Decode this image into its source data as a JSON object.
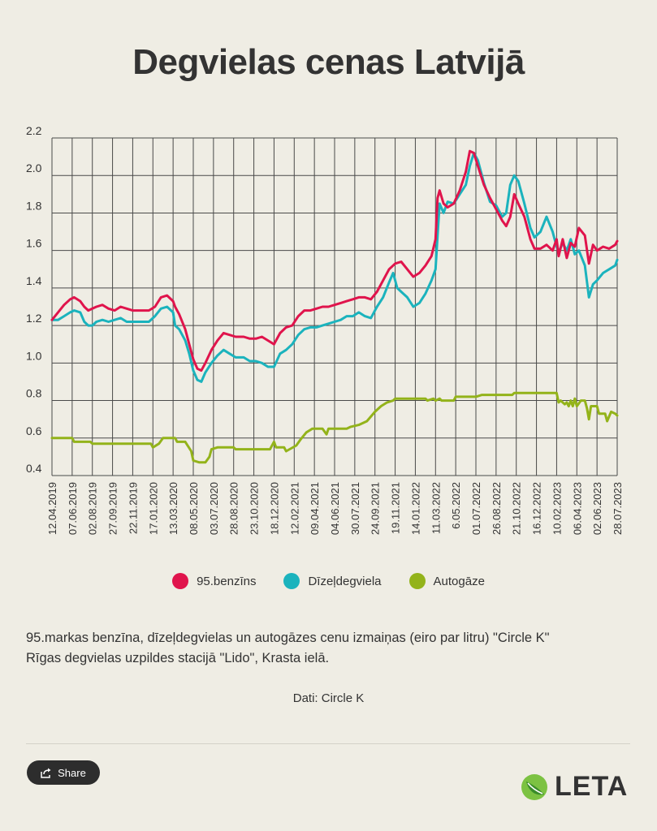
{
  "page": {
    "title": "Degvielas cenas Latvijā",
    "caption_line1": "95.markas benzīna, dīzeļdegvielas un autogāzes cenu izmaiņas (eiro par litru) \"Circle K\"",
    "caption_line2": "Rīgas degvielas uzpildes stacijā \"Lido\", Krasta ielā.",
    "source": "Dati: Circle K",
    "share_label": "Share",
    "logo_text": "LETA"
  },
  "colors": {
    "benzins": "#e0144c",
    "dizel": "#1bb3bd",
    "gaze": "#93b31a",
    "grid": "#4a4a4a",
    "background": "#efede4"
  },
  "chart_data": {
    "type": "line",
    "title": "Degvielas cenas Latvijā",
    "ylabel": "eiro par litru",
    "ylim": [
      0.4,
      2.2
    ],
    "yticks": [
      0.4,
      0.6,
      0.8,
      1.0,
      1.2,
      1.4,
      1.6,
      1.8,
      2.0,
      2.2
    ],
    "ytick_labels": [
      "0.4",
      "0.6",
      "0.8",
      "1.0",
      "1.2",
      "1.4",
      "1.6",
      "1.8",
      "2.0",
      "2.2"
    ],
    "x_tick_labels": [
      "12.04.2019",
      "07.06.2019",
      "02.08.2019",
      "27.09.2019",
      "22.11.2019",
      "17.01.2020",
      "13.03.2020",
      "08.05.2020",
      "03.07.2020",
      "28.08.2020",
      "23.10.2020",
      "18.12.2020",
      "12.02.2021",
      "09.04.2021",
      "04.06.2021",
      "30.07.2021",
      "24.09.2021",
      "19.11.2021",
      "14.01.2022",
      "11.03.2022",
      "6.05.2022",
      "01.07.2022",
      "26.08.2022",
      "21.10.2022",
      "16.12.2022",
      "10.02.2023",
      "06.04.2023",
      "02.06.2023",
      "28.07.2023"
    ],
    "grid": true,
    "legend_position": "bottom",
    "series": [
      {
        "name": "95.benzīns",
        "color": "#e0144c",
        "points": [
          [
            0,
            1.23
          ],
          [
            0.3,
            1.27
          ],
          [
            0.6,
            1.31
          ],
          [
            0.9,
            1.34
          ],
          [
            1.1,
            1.35
          ],
          [
            1.4,
            1.33
          ],
          [
            1.6,
            1.3
          ],
          [
            1.8,
            1.28
          ],
          [
            2.0,
            1.29
          ],
          [
            2.2,
            1.3
          ],
          [
            2.5,
            1.31
          ],
          [
            2.8,
            1.29
          ],
          [
            3.1,
            1.28
          ],
          [
            3.4,
            1.3
          ],
          [
            3.7,
            1.29
          ],
          [
            4.0,
            1.28
          ],
          [
            4.4,
            1.28
          ],
          [
            4.8,
            1.28
          ],
          [
            5.1,
            1.3
          ],
          [
            5.4,
            1.35
          ],
          [
            5.7,
            1.36
          ],
          [
            6.0,
            1.33
          ],
          [
            6.1,
            1.3
          ],
          [
            6.3,
            1.26
          ],
          [
            6.6,
            1.18
          ],
          [
            6.8,
            1.1
          ],
          [
            7.0,
            1.02
          ],
          [
            7.2,
            0.97
          ],
          [
            7.4,
            0.96
          ],
          [
            7.6,
            1.0
          ],
          [
            7.9,
            1.07
          ],
          [
            8.2,
            1.12
          ],
          [
            8.5,
            1.16
          ],
          [
            8.8,
            1.15
          ],
          [
            9.1,
            1.14
          ],
          [
            9.5,
            1.14
          ],
          [
            9.8,
            1.13
          ],
          [
            10.1,
            1.13
          ],
          [
            10.4,
            1.14
          ],
          [
            10.7,
            1.12
          ],
          [
            11.0,
            1.1
          ],
          [
            11.3,
            1.16
          ],
          [
            11.6,
            1.19
          ],
          [
            11.9,
            1.2
          ],
          [
            12.2,
            1.25
          ],
          [
            12.5,
            1.28
          ],
          [
            12.8,
            1.28
          ],
          [
            13.1,
            1.29
          ],
          [
            13.4,
            1.3
          ],
          [
            13.7,
            1.3
          ],
          [
            14.0,
            1.31
          ],
          [
            14.3,
            1.32
          ],
          [
            14.6,
            1.33
          ],
          [
            14.9,
            1.34
          ],
          [
            15.2,
            1.35
          ],
          [
            15.5,
            1.35
          ],
          [
            15.8,
            1.34
          ],
          [
            16.1,
            1.38
          ],
          [
            16.4,
            1.44
          ],
          [
            16.7,
            1.5
          ],
          [
            17.0,
            1.53
          ],
          [
            17.3,
            1.54
          ],
          [
            17.6,
            1.5
          ],
          [
            17.9,
            1.46
          ],
          [
            18.2,
            1.48
          ],
          [
            18.5,
            1.52
          ],
          [
            18.8,
            1.57
          ],
          [
            19.0,
            1.66
          ],
          [
            19.1,
            1.88
          ],
          [
            19.2,
            1.92
          ],
          [
            19.4,
            1.85
          ],
          [
            19.6,
            1.83
          ],
          [
            19.9,
            1.85
          ],
          [
            20.2,
            1.92
          ],
          [
            20.5,
            2.02
          ],
          [
            20.7,
            2.13
          ],
          [
            20.9,
            2.12
          ],
          [
            21.1,
            2.05
          ],
          [
            21.4,
            1.95
          ],
          [
            21.7,
            1.88
          ],
          [
            22.0,
            1.82
          ],
          [
            22.3,
            1.76
          ],
          [
            22.5,
            1.73
          ],
          [
            22.7,
            1.78
          ],
          [
            22.9,
            1.9
          ],
          [
            23.1,
            1.85
          ],
          [
            23.4,
            1.78
          ],
          [
            23.7,
            1.66
          ],
          [
            23.9,
            1.61
          ],
          [
            24.2,
            1.61
          ],
          [
            24.5,
            1.63
          ],
          [
            24.8,
            1.6
          ],
          [
            25.0,
            1.66
          ],
          [
            25.1,
            1.57
          ],
          [
            25.3,
            1.66
          ],
          [
            25.5,
            1.56
          ],
          [
            25.7,
            1.64
          ],
          [
            25.9,
            1.62
          ],
          [
            26.1,
            1.72
          ],
          [
            26.4,
            1.68
          ],
          [
            26.6,
            1.53
          ],
          [
            26.8,
            1.63
          ],
          [
            27.0,
            1.6
          ],
          [
            27.3,
            1.62
          ],
          [
            27.6,
            1.61
          ],
          [
            27.9,
            1.63
          ],
          [
            28.0,
            1.65
          ]
        ]
      },
      {
        "name": "Dīzeļdegviela",
        "color": "#1bb3bd",
        "points": [
          [
            0,
            1.23
          ],
          [
            0.3,
            1.23
          ],
          [
            0.6,
            1.25
          ],
          [
            0.9,
            1.27
          ],
          [
            1.1,
            1.28
          ],
          [
            1.4,
            1.27
          ],
          [
            1.6,
            1.22
          ],
          [
            1.8,
            1.2
          ],
          [
            2.0,
            1.2
          ],
          [
            2.2,
            1.22
          ],
          [
            2.5,
            1.23
          ],
          [
            2.8,
            1.22
          ],
          [
            3.1,
            1.23
          ],
          [
            3.4,
            1.24
          ],
          [
            3.7,
            1.22
          ],
          [
            4.0,
            1.22
          ],
          [
            4.4,
            1.22
          ],
          [
            4.8,
            1.22
          ],
          [
            5.1,
            1.25
          ],
          [
            5.4,
            1.29
          ],
          [
            5.7,
            1.3
          ],
          [
            6.0,
            1.27
          ],
          [
            6.1,
            1.2
          ],
          [
            6.3,
            1.18
          ],
          [
            6.6,
            1.12
          ],
          [
            6.8,
            1.05
          ],
          [
            7.0,
            0.96
          ],
          [
            7.2,
            0.91
          ],
          [
            7.4,
            0.9
          ],
          [
            7.6,
            0.95
          ],
          [
            7.9,
            1.0
          ],
          [
            8.2,
            1.04
          ],
          [
            8.5,
            1.07
          ],
          [
            8.8,
            1.05
          ],
          [
            9.1,
            1.03
          ],
          [
            9.5,
            1.03
          ],
          [
            9.8,
            1.01
          ],
          [
            10.1,
            1.01
          ],
          [
            10.4,
            1.0
          ],
          [
            10.7,
            0.98
          ],
          [
            11.0,
            0.98
          ],
          [
            11.3,
            1.05
          ],
          [
            11.6,
            1.07
          ],
          [
            11.9,
            1.1
          ],
          [
            12.2,
            1.15
          ],
          [
            12.5,
            1.18
          ],
          [
            12.8,
            1.19
          ],
          [
            13.1,
            1.19
          ],
          [
            13.4,
            1.2
          ],
          [
            13.7,
            1.21
          ],
          [
            14.0,
            1.22
          ],
          [
            14.3,
            1.23
          ],
          [
            14.6,
            1.25
          ],
          [
            14.9,
            1.25
          ],
          [
            15.2,
            1.27
          ],
          [
            15.5,
            1.25
          ],
          [
            15.8,
            1.24
          ],
          [
            16.1,
            1.3
          ],
          [
            16.4,
            1.35
          ],
          [
            16.7,
            1.43
          ],
          [
            16.9,
            1.48
          ],
          [
            17.1,
            1.4
          ],
          [
            17.3,
            1.38
          ],
          [
            17.6,
            1.35
          ],
          [
            17.9,
            1.3
          ],
          [
            18.2,
            1.32
          ],
          [
            18.5,
            1.37
          ],
          [
            18.8,
            1.44
          ],
          [
            19.0,
            1.5
          ],
          [
            19.1,
            1.68
          ],
          [
            19.2,
            1.85
          ],
          [
            19.4,
            1.8
          ],
          [
            19.6,
            1.86
          ],
          [
            19.9,
            1.85
          ],
          [
            20.2,
            1.9
          ],
          [
            20.5,
            1.95
          ],
          [
            20.7,
            2.05
          ],
          [
            20.9,
            2.12
          ],
          [
            21.1,
            2.08
          ],
          [
            21.4,
            1.96
          ],
          [
            21.7,
            1.86
          ],
          [
            22.0,
            1.84
          ],
          [
            22.3,
            1.78
          ],
          [
            22.5,
            1.8
          ],
          [
            22.7,
            1.95
          ],
          [
            22.9,
            2.0
          ],
          [
            23.1,
            1.97
          ],
          [
            23.4,
            1.85
          ],
          [
            23.7,
            1.72
          ],
          [
            23.9,
            1.67
          ],
          [
            24.2,
            1.7
          ],
          [
            24.5,
            1.78
          ],
          [
            24.8,
            1.7
          ],
          [
            25.0,
            1.62
          ],
          [
            25.1,
            1.59
          ],
          [
            25.3,
            1.64
          ],
          [
            25.5,
            1.6
          ],
          [
            25.7,
            1.66
          ],
          [
            25.9,
            1.58
          ],
          [
            26.1,
            1.6
          ],
          [
            26.4,
            1.52
          ],
          [
            26.6,
            1.35
          ],
          [
            26.8,
            1.42
          ],
          [
            27.0,
            1.44
          ],
          [
            27.3,
            1.48
          ],
          [
            27.6,
            1.5
          ],
          [
            27.9,
            1.52
          ],
          [
            28.0,
            1.55
          ]
        ]
      },
      {
        "name": "Autogāze",
        "color": "#93b31a",
        "points": [
          [
            0,
            0.6
          ],
          [
            1.0,
            0.6
          ],
          [
            1.1,
            0.58
          ],
          [
            1.9,
            0.58
          ],
          [
            2.0,
            0.57
          ],
          [
            4.9,
            0.57
          ],
          [
            5.0,
            0.55
          ],
          [
            5.3,
            0.57
          ],
          [
            5.5,
            0.6
          ],
          [
            6.1,
            0.6
          ],
          [
            6.2,
            0.58
          ],
          [
            6.6,
            0.58
          ],
          [
            6.9,
            0.53
          ],
          [
            7.0,
            0.48
          ],
          [
            7.3,
            0.47
          ],
          [
            7.6,
            0.47
          ],
          [
            7.8,
            0.5
          ],
          [
            7.9,
            0.54
          ],
          [
            8.2,
            0.55
          ],
          [
            9.0,
            0.55
          ],
          [
            9.1,
            0.54
          ],
          [
            10.8,
            0.54
          ],
          [
            11.0,
            0.58
          ],
          [
            11.1,
            0.55
          ],
          [
            11.5,
            0.55
          ],
          [
            11.6,
            0.53
          ],
          [
            12.1,
            0.56
          ],
          [
            12.3,
            0.59
          ],
          [
            12.6,
            0.63
          ],
          [
            12.9,
            0.65
          ],
          [
            13.4,
            0.65
          ],
          [
            13.6,
            0.62
          ],
          [
            13.7,
            0.65
          ],
          [
            14.6,
            0.65
          ],
          [
            14.8,
            0.66
          ],
          [
            15.2,
            0.67
          ],
          [
            15.6,
            0.69
          ],
          [
            16.0,
            0.74
          ],
          [
            16.3,
            0.77
          ],
          [
            16.6,
            0.79
          ],
          [
            16.9,
            0.8
          ],
          [
            17.0,
            0.81
          ],
          [
            18.5,
            0.81
          ],
          [
            18.6,
            0.8
          ],
          [
            18.9,
            0.81
          ],
          [
            19.0,
            0.8
          ],
          [
            19.2,
            0.81
          ],
          [
            19.3,
            0.8
          ],
          [
            19.9,
            0.8
          ],
          [
            20.0,
            0.82
          ],
          [
            21.0,
            0.82
          ],
          [
            21.3,
            0.83
          ],
          [
            22.8,
            0.83
          ],
          [
            22.9,
            0.84
          ],
          [
            25.0,
            0.84
          ],
          [
            25.1,
            0.79
          ],
          [
            25.2,
            0.8
          ],
          [
            25.4,
            0.78
          ],
          [
            25.5,
            0.79
          ],
          [
            25.6,
            0.77
          ],
          [
            25.7,
            0.8
          ],
          [
            25.8,
            0.77
          ],
          [
            25.9,
            0.81
          ],
          [
            26.0,
            0.77
          ],
          [
            26.2,
            0.8
          ],
          [
            26.4,
            0.8
          ],
          [
            26.5,
            0.76
          ],
          [
            26.6,
            0.7
          ],
          [
            26.7,
            0.77
          ],
          [
            27.0,
            0.77
          ],
          [
            27.1,
            0.73
          ],
          [
            27.4,
            0.73
          ],
          [
            27.5,
            0.69
          ],
          [
            27.7,
            0.74
          ],
          [
            27.9,
            0.73
          ],
          [
            28.0,
            0.72
          ]
        ]
      }
    ]
  }
}
